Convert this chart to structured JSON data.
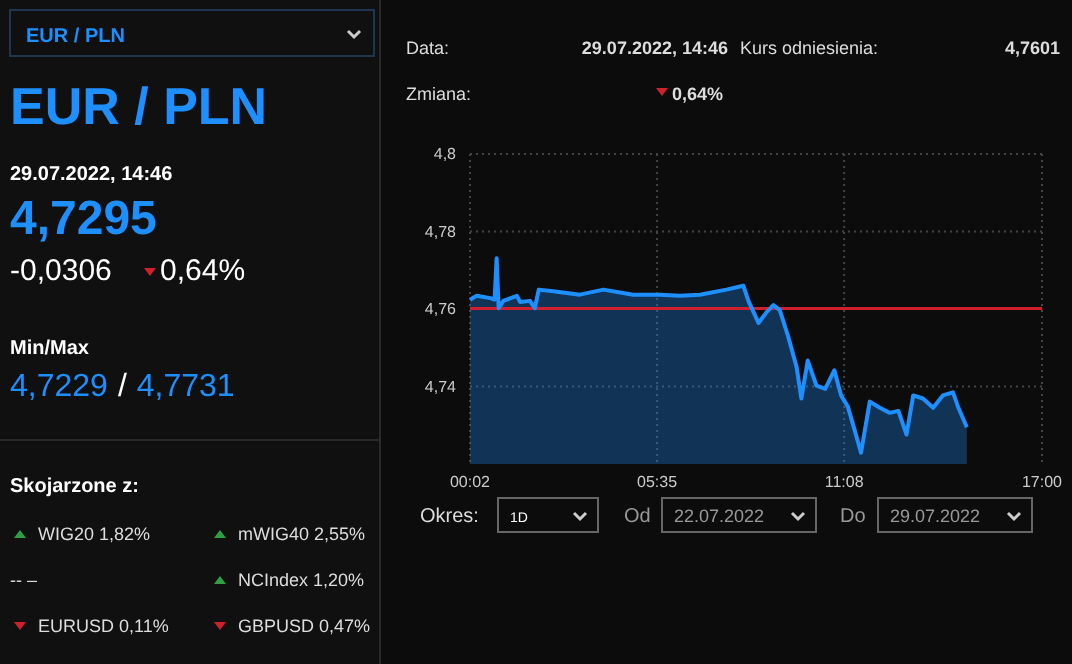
{
  "chart_data": [
    {
      "type": "other",
      "title": "EUR / PLN",
      "annotations": [
        "EUR / PLN",
        "29.07.2022, 14:46",
        "4,7295",
        "-0,0306",
        "0,64%",
        "Min/Max",
        "4,7229",
        "/",
        "4,7731"
      ]
    },
    {
      "type": "other",
      "title": "Skojarzone z:",
      "annotations": [
        "WIG20 1,82%",
        "mWIG40 2,55%",
        "-- –",
        "NCIndex 1,20%",
        "EURUSD 0,11%",
        "GBPUSD 0,47%"
      ]
    },
    {
      "type": "other",
      "annotations": [
        "Data:",
        "29.07.2022, 14:46",
        "Kurs odniesienia:",
        "4,7601",
        "Zmiana:",
        "0,64%"
      ]
    },
    {
      "type": "area",
      "color": "#1e8fff",
      "x": [
        0.03,
        0.23,
        0.63,
        0.76,
        0.82,
        0.88,
        1.02,
        1.42,
        1.52,
        1.81,
        1.95,
        2.07,
        2.5,
        3.29,
        3.99,
        4.87,
        5.67,
        6.26,
        6.85,
        7.64,
        8.14,
        8.29,
        8.59,
        8.83,
        9.03,
        9.22,
        9.46,
        9.72,
        9.86,
        10.05,
        10.31,
        10.57,
        10.84,
        11.04,
        11.24,
        11.44,
        11.63,
        11.89,
        12.19,
        12.48,
        12.74,
        12.98,
        13.18,
        13.47,
        13.77,
        14.06,
        14.36,
        14.52,
        14.77
      ],
      "values": [
        4.7624,
        4.7634,
        4.7628,
        4.7624,
        4.7731,
        4.7602,
        4.7621,
        4.7634,
        4.7618,
        4.7621,
        4.7602,
        4.765,
        4.7646,
        4.7637,
        4.765,
        4.7637,
        4.7637,
        4.7634,
        4.7637,
        4.765,
        4.766,
        4.7621,
        4.7564,
        4.7592,
        4.761,
        4.7597,
        4.7532,
        4.745,
        4.7369,
        4.7467,
        4.7402,
        4.7394,
        4.7442,
        4.7377,
        4.7348,
        4.7288,
        4.7229,
        4.7361,
        4.7345,
        4.7332,
        4.7337,
        4.7276,
        4.7377,
        4.7369,
        4.7345,
        4.7377,
        4.7385,
        4.7345,
        4.7295
      ],
      "xlim": [
        0.03,
        17
      ],
      "xticks": [
        {
          "value": 0.03,
          "label": "00:02"
        },
        {
          "value": 5.58,
          "label": "05:35"
        },
        {
          "value": 11.13,
          "label": "11:08"
        },
        {
          "value": 17,
          "label": "17:00"
        }
      ],
      "ylim": [
        4.72,
        4.8
      ],
      "yticks": [
        {
          "value": 4.74,
          "label": "4,74"
        },
        {
          "value": 4.76,
          "label": "4,76"
        },
        {
          "value": 4.78,
          "label": "4,78"
        },
        {
          "value": 4.8,
          "label": "4,8"
        }
      ],
      "ref_lines": [
        {
          "axis": "y",
          "value": 4.7601,
          "color": "#d0202e"
        }
      ],
      "grid": true
    },
    {
      "type": "other",
      "annotations": [
        "Okres:",
        "1D",
        "Od",
        "22.07.2022",
        "Do",
        "29.07.2022"
      ]
    }
  ]
}
